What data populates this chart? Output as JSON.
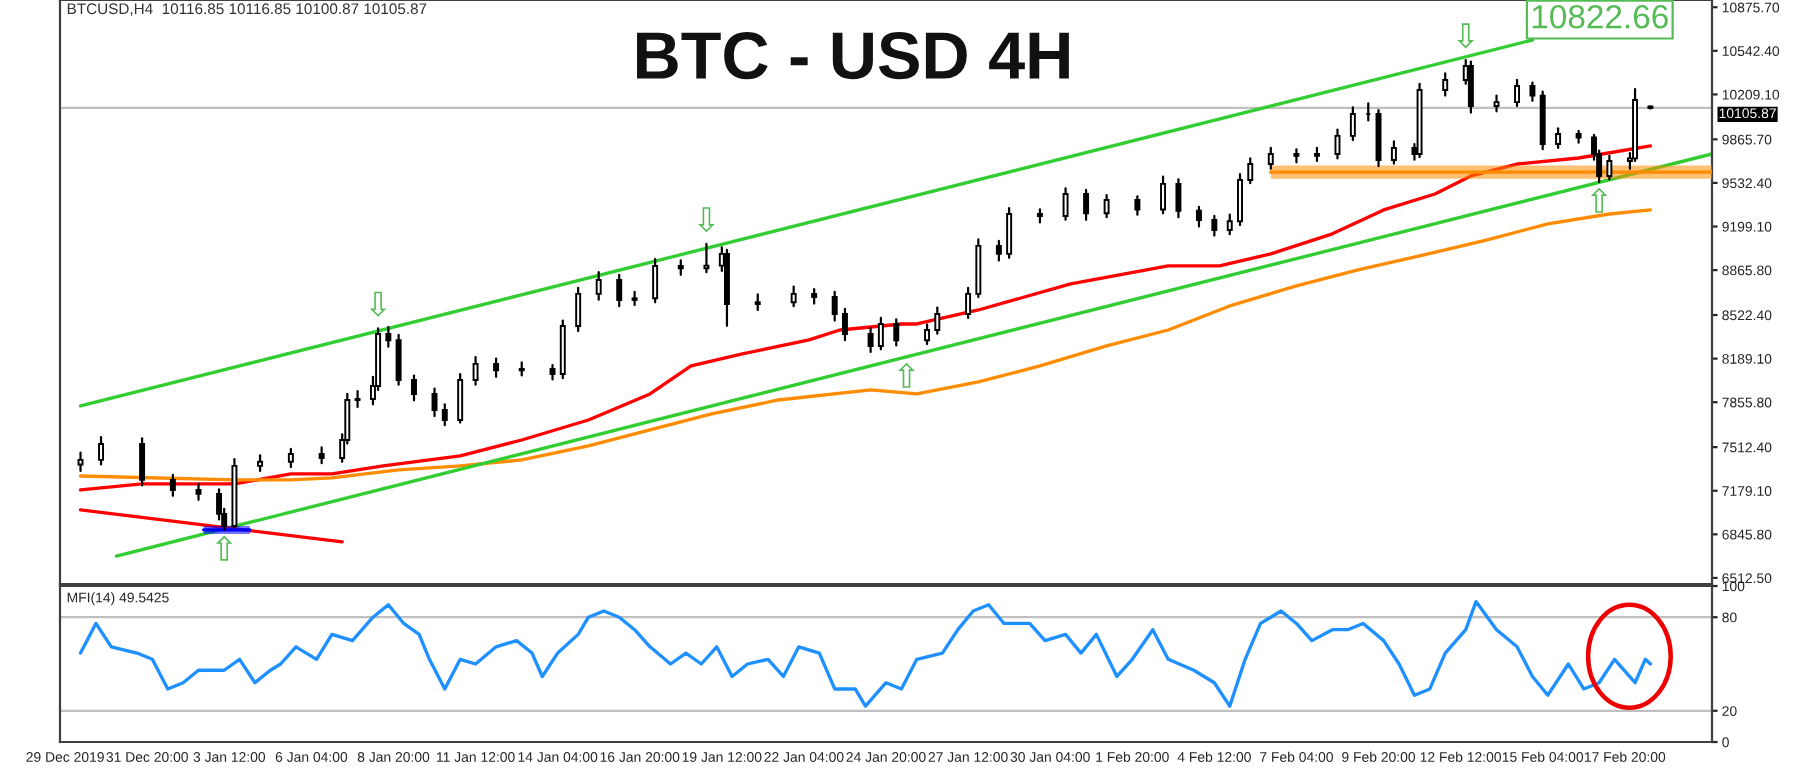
{
  "chart_data": [
    {
      "type": "candlestick",
      "title": "BTC - USD 4H",
      "annotations": [
        "BTCUSD,H4  10116.85 10116.85 10100.87 10105.87",
        {
          "text": "⇩",
          "x": "2020-01-08T08:00",
          "y": 8420
        },
        {
          "text": "⇩",
          "x": "2020-01-19T00:00",
          "y": 9066
        },
        {
          "text": "⇩",
          "x": "2020-02-12T16:00",
          "y": 10472
        },
        {
          "text": "⇧",
          "x": "2020-01-03T08:00",
          "y": 6880
        },
        {
          "text": "⇧",
          "x": "2020-01-25T12:00",
          "y": 8202
        },
        {
          "text": "⇧",
          "x": "2020-02-17T00:00",
          "y": 9540
        },
        "10822.66"
      ],
      "x": [
        "2019-12-29T16:00",
        "2019-12-30T08:00",
        "2019-12-31T16:00",
        "2020-01-01T16:00",
        "2020-01-02T12:00",
        "2020-01-03T04:00",
        "2020-01-03T08:00",
        "2020-01-03T16:00",
        "2020-01-04T12:00",
        "2020-01-05T12:00",
        "2020-01-06T12:00",
        "2020-01-07T04:00",
        "2020-01-07T08:00",
        "2020-01-07T16:00",
        "2020-01-08T04:00",
        "2020-01-08T08:00",
        "2020-01-08T16:00",
        "2020-01-09T00:00",
        "2020-01-09T12:00",
        "2020-01-10T04:00",
        "2020-01-10T12:00",
        "2020-01-11T00:00",
        "2020-01-11T12:00",
        "2020-01-12T04:00",
        "2020-01-13T00:00",
        "2020-01-14T00:00",
        "2020-01-14T08:00",
        "2020-01-14T20:00",
        "2020-01-15T12:00",
        "2020-01-16T04:00",
        "2020-01-16T16:00",
        "2020-01-17T08:00",
        "2020-01-18T04:00",
        "2020-01-19T00:00",
        "2020-01-19T12:00",
        "2020-01-19T16:00",
        "2020-01-20T16:00",
        "2020-01-21T20:00",
        "2020-01-22T12:00",
        "2020-01-23T04:00",
        "2020-01-23T12:00",
        "2020-01-24T08:00",
        "2020-01-24T16:00",
        "2020-01-25T04:00",
        "2020-01-26T04:00",
        "2020-01-26T12:00",
        "2020-01-27T12:00",
        "2020-01-27T20:00",
        "2020-01-28T12:00",
        "2020-01-28T20:00",
        "2020-01-29T20:00",
        "2020-01-30T16:00",
        "2020-01-31T08:00",
        "2020-02-01T00:00",
        "2020-02-02T00:00",
        "2020-02-02T20:00",
        "2020-02-03T08:00",
        "2020-02-04T00:00",
        "2020-02-04T12:00",
        "2020-02-05T00:00",
        "2020-02-05T08:00",
        "2020-02-05T16:00",
        "2020-02-06T08:00",
        "2020-02-07T04:00",
        "2020-02-07T20:00",
        "2020-02-08T12:00",
        "2020-02-09T00:00",
        "2020-02-09T12:00",
        "2020-02-09T20:00",
        "2020-02-10T08:00",
        "2020-02-11T00:00",
        "2020-02-11T04:00",
        "2020-02-12T00:00",
        "2020-02-12T16:00",
        "2020-02-12T20:00",
        "2020-02-13T16:00",
        "2020-02-14T08:00",
        "2020-02-14T20:00",
        "2020-02-15T04:00",
        "2020-02-15T16:00",
        "2020-02-16T08:00",
        "2020-02-16T20:00",
        "2020-02-17T00:00",
        "2020-02-17T08:00",
        "2020-02-18T00:00",
        "2020-02-18T04:00",
        "2020-02-18T16:00"
      ],
      "ohlc": [
        [
          7380,
          7470,
          7330,
          7415
        ],
        [
          7415,
          7590,
          7380,
          7537
        ],
        [
          7537,
          7580,
          7220,
          7262
        ],
        [
          7262,
          7300,
          7140,
          7185
        ],
        [
          7185,
          7230,
          7110,
          7155
        ],
        [
          7155,
          7190,
          6960,
          7002
        ],
        [
          7002,
          7040,
          6880,
          6910
        ],
        [
          6910,
          7420,
          6900,
          7369
        ],
        [
          7369,
          7450,
          7330,
          7400
        ],
        [
          7400,
          7500,
          7360,
          7460
        ],
        [
          7460,
          7510,
          7390,
          7430
        ],
        [
          7430,
          7610,
          7400,
          7567
        ],
        [
          7567,
          7920,
          7540,
          7873
        ],
        [
          7873,
          7940,
          7820,
          7880
        ],
        [
          7880,
          8050,
          7840,
          7980
        ],
        [
          7980,
          8420,
          7950,
          8378
        ],
        [
          8378,
          8430,
          8280,
          8330
        ],
        [
          8330,
          8370,
          7990,
          8026
        ],
        [
          8026,
          8060,
          7870,
          7919
        ],
        [
          7919,
          7960,
          7750,
          7797
        ],
        [
          7797,
          7840,
          7680,
          7720
        ],
        [
          7720,
          8070,
          7700,
          8026
        ],
        [
          8026,
          8200,
          7990,
          8149
        ],
        [
          8149,
          8190,
          8050,
          8100
        ],
        [
          8100,
          8160,
          8060,
          8110
        ],
        [
          8110,
          8140,
          8030,
          8072
        ],
        [
          8072,
          8480,
          8040,
          8439
        ],
        [
          8439,
          8730,
          8400,
          8684
        ],
        [
          8684,
          8850,
          8640,
          8790
        ],
        [
          8790,
          8830,
          8590,
          8638
        ],
        [
          8638,
          8700,
          8600,
          8650
        ],
        [
          8650,
          8950,
          8620,
          8898
        ],
        [
          8898,
          8940,
          8830,
          8880
        ],
        [
          8880,
          9066,
          8850,
          8900
        ],
        [
          8900,
          9040,
          8860,
          8990
        ],
        [
          8990,
          9020,
          8440,
          8607
        ],
        [
          8607,
          8680,
          8560,
          8620
        ],
        [
          8620,
          8740,
          8590,
          8684
        ],
        [
          8684,
          8720,
          8610,
          8660
        ],
        [
          8660,
          8700,
          8480,
          8531
        ],
        [
          8531,
          8570,
          8330,
          8378
        ],
        [
          8378,
          8420,
          8240,
          8286
        ],
        [
          8286,
          8500,
          8260,
          8454
        ],
        [
          8454,
          8490,
          8290,
          8330
        ],
        [
          8330,
          8450,
          8300,
          8408
        ],
        [
          8408,
          8580,
          8380,
          8531
        ],
        [
          8531,
          8730,
          8500,
          8684
        ],
        [
          8684,
          9100,
          8660,
          9051
        ],
        [
          9051,
          9090,
          8940,
          8990
        ],
        [
          8990,
          9340,
          8960,
          9295
        ],
        [
          9295,
          9330,
          9230,
          9280
        ],
        [
          9280,
          9490,
          9250,
          9448
        ],
        [
          9448,
          9480,
          9250,
          9300
        ],
        [
          9300,
          9440,
          9270,
          9402
        ],
        [
          9402,
          9430,
          9290,
          9330
        ],
        [
          9330,
          9580,
          9300,
          9525
        ],
        [
          9525,
          9560,
          9270,
          9320
        ],
        [
          9320,
          9350,
          9200,
          9249
        ],
        [
          9249,
          9280,
          9130,
          9173
        ],
        [
          9173,
          9290,
          9140,
          9240
        ],
        [
          9240,
          9600,
          9210,
          9555
        ],
        [
          9555,
          9720,
          9530,
          9677
        ],
        [
          9677,
          9800,
          9640,
          9754
        ],
        [
          9754,
          9790,
          9690,
          9740
        ],
        [
          9740,
          9800,
          9700,
          9754
        ],
        [
          9754,
          9940,
          9720,
          9892
        ],
        [
          9892,
          10110,
          9860,
          10060
        ],
        [
          10060,
          10140,
          10010,
          10060
        ],
        [
          10060,
          10090,
          9660,
          9708
        ],
        [
          9708,
          9850,
          9680,
          9800
        ],
        [
          9800,
          9830,
          9710,
          9754
        ],
        [
          9754,
          10290,
          9730,
          10243
        ],
        [
          10243,
          10370,
          10200,
          10320
        ],
        [
          10320,
          10472,
          10290,
          10427
        ],
        [
          10427,
          10460,
          10070,
          10121
        ],
        [
          10121,
          10200,
          10080,
          10150
        ],
        [
          10150,
          10320,
          10120,
          10274
        ],
        [
          10274,
          10300,
          10160,
          10200
        ],
        [
          10200,
          10230,
          9790,
          9830
        ],
        [
          9830,
          9950,
          9800,
          9907
        ],
        [
          9907,
          9930,
          9840,
          9880
        ],
        [
          9880,
          9900,
          9710,
          9754
        ],
        [
          9754,
          9780,
          9540,
          9586
        ],
        [
          9586,
          9740,
          9560,
          9700
        ],
        [
          9700,
          9760,
          9640,
          9720
        ],
        [
          9720,
          10250,
          9700,
          10167
        ],
        [
          10116.85,
          10116.85,
          10100.87,
          10105.87
        ]
      ],
      "series": [
        {
          "type": "line",
          "color": "#ff0000",
          "x": [
            "2019-12-29T16:00",
            "2019-12-31T16:00",
            "2020-01-03T16:00",
            "2020-01-05T12:00",
            "2020-01-06T20:00",
            "2020-01-08T12:00",
            "2020-01-11T00:00",
            "2020-01-13T00:00",
            "2020-01-15T04:00",
            "2020-01-17T04:00",
            "2020-01-18T12:00",
            "2020-01-20T04:00",
            "2020-01-22T08:00",
            "2020-01-23T08:00",
            "2020-01-25T08:00",
            "2020-01-25T20:00",
            "2020-01-27T20:00",
            "2020-01-30T20:00",
            "2020-02-03T00:00",
            "2020-02-04T16:00",
            "2020-02-06T08:00",
            "2020-02-08T08:00",
            "2020-02-10T00:00",
            "2020-02-11T16:00",
            "2020-02-12T20:00",
            "2020-02-14T08:00",
            "2020-02-16T08:00",
            "2020-02-18T16:00"
          ],
          "values": [
            7185,
            7231,
            7231,
            7308,
            7308,
            7369,
            7445,
            7567,
            7720,
            7919,
            8133,
            8225,
            8332,
            8408,
            8454,
            8454,
            8561,
            8760,
            8898,
            8898,
            8990,
            9143,
            9326,
            9448,
            9586,
            9677,
            9723,
            9815
          ]
        },
        {
          "type": "line",
          "color": "#ff8c00",
          "x": [
            "2019-12-29T16:00",
            "2020-01-03T16:00",
            "2020-01-05T12:00",
            "2020-01-06T20:00",
            "2020-01-09T00:00",
            "2020-01-11T00:00",
            "2020-01-13T00:00",
            "2020-01-15T04:00",
            "2020-01-17T04:00",
            "2020-01-19T04:00",
            "2020-01-21T08:00",
            "2020-01-24T08:00",
            "2020-01-25T20:00",
            "2020-01-27T20:00",
            "2020-01-29T20:00",
            "2020-02-01T00:00",
            "2020-02-03T00:00",
            "2020-02-05T00:00",
            "2020-02-07T04:00",
            "2020-02-09T04:00",
            "2020-02-11T04:00",
            "2020-02-13T08:00",
            "2020-02-15T08:00",
            "2020-02-17T08:00",
            "2020-02-18T16:00"
          ],
          "values": [
            7292,
            7262,
            7262,
            7277,
            7338,
            7369,
            7415,
            7522,
            7644,
            7766,
            7873,
            7950,
            7919,
            8011,
            8133,
            8286,
            8408,
            8592,
            8745,
            8867,
            8974,
            9096,
            9219,
            9295,
            9326
          ]
        },
        {
          "type": "line",
          "color": "#32cd32",
          "x": [
            "2019-12-29T16:00",
            "2020-02-14T20:00"
          ],
          "values": [
            7827,
            10625
          ]
        },
        {
          "type": "line",
          "color": "#32cd32",
          "x": [
            "2019-12-30T20:00",
            "2020-02-20T16:00"
          ],
          "values": [
            6680,
            9754
          ]
        },
        {
          "type": "line",
          "color": "#ff0000",
          "x": [
            "2019-12-29T16:00",
            "2020-01-07T04:00"
          ],
          "values": [
            7032,
            6788
          ]
        },
        {
          "type": "line",
          "color": "#0000ff",
          "x": [
            "2020-01-02T16:00",
            "2020-01-04T04:00"
          ],
          "values": [
            6880,
            6880
          ],
          "lower": [
            6849,
            6849
          ],
          "upper": [
            6910,
            6910
          ]
        },
        {
          "type": "line",
          "color": "#ff8c00",
          "x": [
            "2020-02-06T08:00",
            "2020-02-20T16:00"
          ],
          "values": [
            9615,
            9615
          ],
          "lower": [
            9565,
            9565
          ],
          "upper": [
            9666,
            9666
          ]
        }
      ],
      "xlim": [
        "2019-12-29T00:00",
        "2020-02-20T16:00"
      ],
      "ylim": [
        6466,
        10931
      ],
      "yticks": [
        {
          "value": 6512.5,
          "label": "6512.50"
        },
        {
          "value": 6845.8,
          "label": "6845.80"
        },
        {
          "value": 7179.1,
          "label": "7179.10"
        },
        {
          "value": 7512.4,
          "label": "7512.40"
        },
        {
          "value": 7855.8,
          "label": "7855.80"
        },
        {
          "value": 8189.1,
          "label": "8189.10"
        },
        {
          "value": 8522.4,
          "label": "8522.40"
        },
        {
          "value": 8865.8,
          "label": "8865.80"
        },
        {
          "value": 9199.1,
          "label": "9199.10"
        },
        {
          "value": 9532.4,
          "label": "9532.40"
        },
        {
          "value": 9865.7,
          "label": "9865.70"
        },
        {
          "value": 10209.1,
          "label": "10209.10"
        },
        {
          "value": 10542.4,
          "label": "10542.40"
        },
        {
          "value": 10875.7,
          "label": "10875.70"
        }
      ],
      "ref_lines": [
        {
          "axis": "y",
          "value": 10105.87,
          "label": "10105.87",
          "color": "#c0c0c0"
        }
      ],
      "tick_labels": "y"
    },
    {
      "type": "line",
      "title": "MFI(14) 49.5425",
      "series": [
        {
          "color": "#1e90ff",
          "x": [
            "2019-12-29T16:00",
            "2019-12-30T04:00",
            "2019-12-30T16:00",
            "2019-12-31T12:00",
            "2020-01-01T00:00",
            "2020-01-01T12:00",
            "2020-01-02T00:00",
            "2020-01-02T12:00",
            "2020-01-03T08:00",
            "2020-01-03T20:00",
            "2020-01-04T08:00",
            "2020-01-04T20:00",
            "2020-01-05T04:00",
            "2020-01-05T16:00",
            "2020-01-06T08:00",
            "2020-01-06T20:00",
            "2020-01-07T12:00",
            "2020-01-08T04:00",
            "2020-01-08T16:00",
            "2020-01-09T04:00",
            "2020-01-09T16:00",
            "2020-01-10T00:00",
            "2020-01-10T12:00",
            "2020-01-11T00:00",
            "2020-01-11T12:00",
            "2020-01-12T04:00",
            "2020-01-12T20:00",
            "2020-01-13T08:00",
            "2020-01-13T16:00",
            "2020-01-14T04:00",
            "2020-01-14T20:00",
            "2020-01-15T04:00",
            "2020-01-15T16:00",
            "2020-01-16T04:00",
            "2020-01-16T16:00",
            "2020-01-17T04:00",
            "2020-01-17T20:00",
            "2020-01-18T08:00",
            "2020-01-18T20:00",
            "2020-01-19T08:00",
            "2020-01-19T20:00",
            "2020-01-20T08:00",
            "2020-01-21T00:00",
            "2020-01-21T12:00",
            "2020-01-22T00:00",
            "2020-01-22T16:00",
            "2020-01-23T04:00",
            "2020-01-23T20:00",
            "2020-01-24T04:00",
            "2020-01-24T20:00",
            "2020-01-25T08:00",
            "2020-01-25T20:00",
            "2020-01-26T16:00",
            "2020-01-27T04:00",
            "2020-01-27T16:00",
            "2020-01-28T04:00",
            "2020-01-28T16:00",
            "2020-01-29T12:00",
            "2020-01-30T00:00",
            "2020-01-30T16:00",
            "2020-01-31T04:00",
            "2020-01-31T16:00",
            "2020-02-01T08:00",
            "2020-02-01T20:00",
            "2020-02-02T12:00",
            "2020-02-03T00:00",
            "2020-02-03T20:00",
            "2020-02-04T12:00",
            "2020-02-05T00:00",
            "2020-02-05T12:00",
            "2020-02-06T00:00",
            "2020-02-06T16:00",
            "2020-02-07T04:00",
            "2020-02-07T16:00",
            "2020-02-08T08:00",
            "2020-02-08T20:00",
            "2020-02-09T08:00",
            "2020-02-10T00:00",
            "2020-02-10T12:00",
            "2020-02-11T00:00",
            "2020-02-11T12:00",
            "2020-02-12T00:00",
            "2020-02-12T16:00",
            "2020-02-13T00:00",
            "2020-02-13T16:00",
            "2020-02-14T08:00",
            "2020-02-14T20:00",
            "2020-02-15T08:00",
            "2020-02-16T00:00",
            "2020-02-16T12:00",
            "2020-02-17T00:00",
            "2020-02-17T12:00",
            "2020-02-18T04:00",
            "2020-02-18T12:00",
            "2020-02-18T16:00"
          ],
          "values": [
            57,
            76,
            61,
            57,
            53,
            34,
            38,
            46,
            46,
            53,
            38,
            46,
            50,
            61,
            53,
            69,
            65,
            80,
            88,
            76,
            69,
            53,
            34,
            53,
            50,
            61,
            65,
            57,
            42,
            57,
            69,
            80,
            84,
            80,
            72,
            61,
            50,
            57,
            50,
            61,
            42,
            50,
            53,
            42,
            61,
            57,
            34,
            34,
            23,
            38,
            34,
            53,
            57,
            72,
            84,
            88,
            76,
            76,
            65,
            69,
            57,
            69,
            42,
            53,
            72,
            53,
            46,
            38,
            23,
            53,
            76,
            84,
            76,
            65,
            72,
            72,
            76,
            65,
            50,
            30,
            34,
            57,
            72,
            90,
            72,
            61,
            42,
            30,
            50,
            34,
            38,
            53,
            38,
            53,
            50
          ]
        }
      ],
      "xlim": [
        "2019-12-29T00:00",
        "2020-02-20T16:00"
      ],
      "xticks": [
        {
          "value": "2019-12-29T04:00",
          "label": "29 Dec 2019"
        },
        {
          "value": "2019-12-31T20:00",
          "label": "31 Dec 20:00"
        },
        {
          "value": "2020-01-03T12:00",
          "label": "3 Jan 12:00"
        },
        {
          "value": "2020-01-06T04:00",
          "label": "6 Jan 04:00"
        },
        {
          "value": "2020-01-08T20:00",
          "label": "8 Jan 20:00"
        },
        {
          "value": "2020-01-11T12:00",
          "label": "11 Jan 12:00"
        },
        {
          "value": "2020-01-14T04:00",
          "label": "14 Jan 04:00"
        },
        {
          "value": "2020-01-16T20:00",
          "label": "16 Jan 20:00"
        },
        {
          "value": "2020-01-19T12:00",
          "label": "19 Jan 12:00"
        },
        {
          "value": "2020-01-22T04:00",
          "label": "22 Jan 04:00"
        },
        {
          "value": "2020-01-24T20:00",
          "label": "24 Jan 20:00"
        },
        {
          "value": "2020-01-27T12:00",
          "label": "27 Jan 12:00"
        },
        {
          "value": "2020-01-30T04:00",
          "label": "30 Jan 04:00"
        },
        {
          "value": "2020-02-01T20:00",
          "label": "1 Feb 20:00"
        },
        {
          "value": "2020-02-04T12:00",
          "label": "4 Feb 12:00"
        },
        {
          "value": "2020-02-07T04:00",
          "label": "7 Feb 04:00"
        },
        {
          "value": "2020-02-09T20:00",
          "label": "9 Feb 20:00"
        },
        {
          "value": "2020-02-12T12:00",
          "label": "12 Feb 12:00"
        },
        {
          "value": "2020-02-15T04:00",
          "label": "15 Feb 04:00"
        },
        {
          "value": "2020-02-17T20:00",
          "label": "17 Feb 20:00"
        }
      ],
      "ylim": [
        0,
        100
      ],
      "yticks": [
        0,
        20,
        80,
        100
      ],
      "ref_lines": [
        {
          "axis": "y",
          "value": 80,
          "color": "#c0c0c0"
        },
        {
          "axis": "y",
          "value": 20,
          "color": "#c0c0c0"
        }
      ]
    }
  ]
}
